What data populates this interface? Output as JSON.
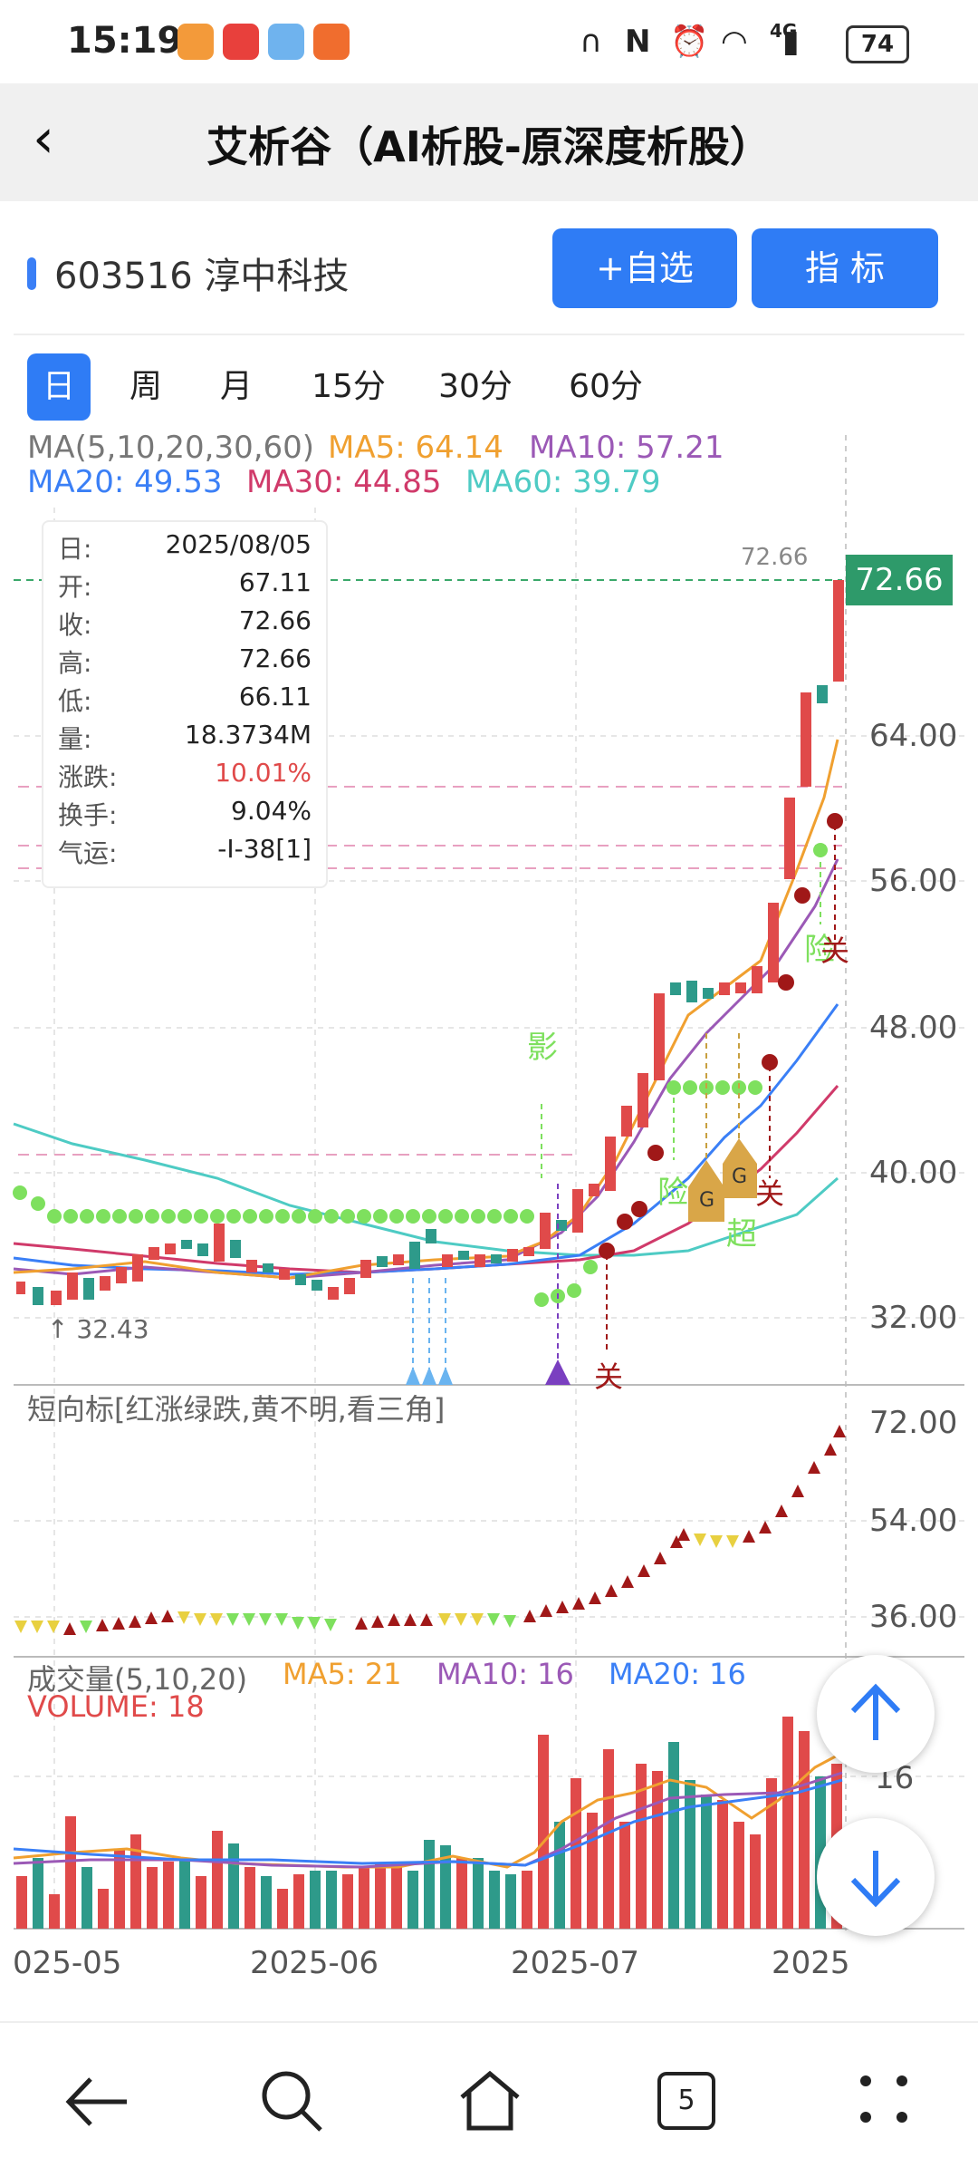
{
  "status_bar": {
    "time": "15:19",
    "network": "4G",
    "battery": "74",
    "icons": [
      "headphones-icon",
      "nfc-icon",
      "alarm-icon",
      "wifi-icon",
      "signal-icon",
      "battery-icon"
    ],
    "app_icons": [
      "app-icon-orange",
      "app-icon-red",
      "app-icon-blue",
      "app-icon-orange2"
    ]
  },
  "nav": {
    "title": "艾析谷（AI析股-原深度析股）",
    "back_icon": "chevron-left-icon"
  },
  "stock": {
    "code_name": "603516 淳中科技",
    "add_watchlist": "+自选",
    "indicator": "指  标"
  },
  "periods": {
    "items": [
      "日",
      "周",
      "月",
      "15分",
      "30分",
      "60分"
    ],
    "active": "日"
  },
  "ma_legend": {
    "title": "MA(5,10,20,30,60)",
    "ma5": "MA5: 64.14",
    "ma10": "MA10: 57.21",
    "ma20": "MA20: 49.53",
    "ma30": "MA30: 44.85",
    "ma60": "MA60: 39.79",
    "colors": {
      "ma5": "#f0a030",
      "ma10": "#9b59b6",
      "ma20": "#3a7ff6",
      "ma30": "#d03a6a",
      "ma60": "#4ecbc4",
      "title": "#777"
    }
  },
  "info": {
    "rows": [
      {
        "k": "日:",
        "v": "2025/08/05"
      },
      {
        "k": "开:",
        "v": "67.11"
      },
      {
        "k": "收:",
        "v": "72.66"
      },
      {
        "k": "高:",
        "v": "72.66"
      },
      {
        "k": "低:",
        "v": "66.11"
      },
      {
        "k": "量:",
        "v": "18.3734M"
      },
      {
        "k": "涨跌:",
        "v": "10.01%"
      },
      {
        "k": "换手:",
        "v": "9.04%"
      },
      {
        "k": "气运:",
        "v": "-I-38[1]"
      }
    ],
    "change_color": "#e04a4a"
  },
  "main_chart": {
    "y_ticks": [
      "64.00",
      "56.00",
      "48.00",
      "40.00",
      "32.00"
    ],
    "last_price": "72.66",
    "high_label": "72.66",
    "low_label": "32.43",
    "annotations": {
      "ying": "影",
      "xian1": "险",
      "xian2": "险",
      "chao": "超",
      "guan1": "关",
      "guan2": "关",
      "guan3": "关",
      "g": "G"
    }
  },
  "short_chart": {
    "title": "短向标[红涨绿跌,黄不明,看三角]",
    "y_ticks": [
      "72.00",
      "54.00",
      "36.00"
    ]
  },
  "volume_chart": {
    "title": "成交量(5,10,20)",
    "ma5": "MA5: 21",
    "ma10": "MA10: 16",
    "ma20": "MA20: 16",
    "volume": "VOLUME: 18",
    "y_tick": "16"
  },
  "x_axis": [
    "025-05",
    "2025-06",
    "2025-07",
    "2025"
  ],
  "fabs": {
    "up": "arrow-up-icon",
    "down": "arrow-down-icon"
  },
  "bottom_nav": {
    "back": "back-arrow-icon",
    "search": "search-icon",
    "home": "home-icon",
    "tabs_count": "5",
    "more": "more-icon"
  }
}
